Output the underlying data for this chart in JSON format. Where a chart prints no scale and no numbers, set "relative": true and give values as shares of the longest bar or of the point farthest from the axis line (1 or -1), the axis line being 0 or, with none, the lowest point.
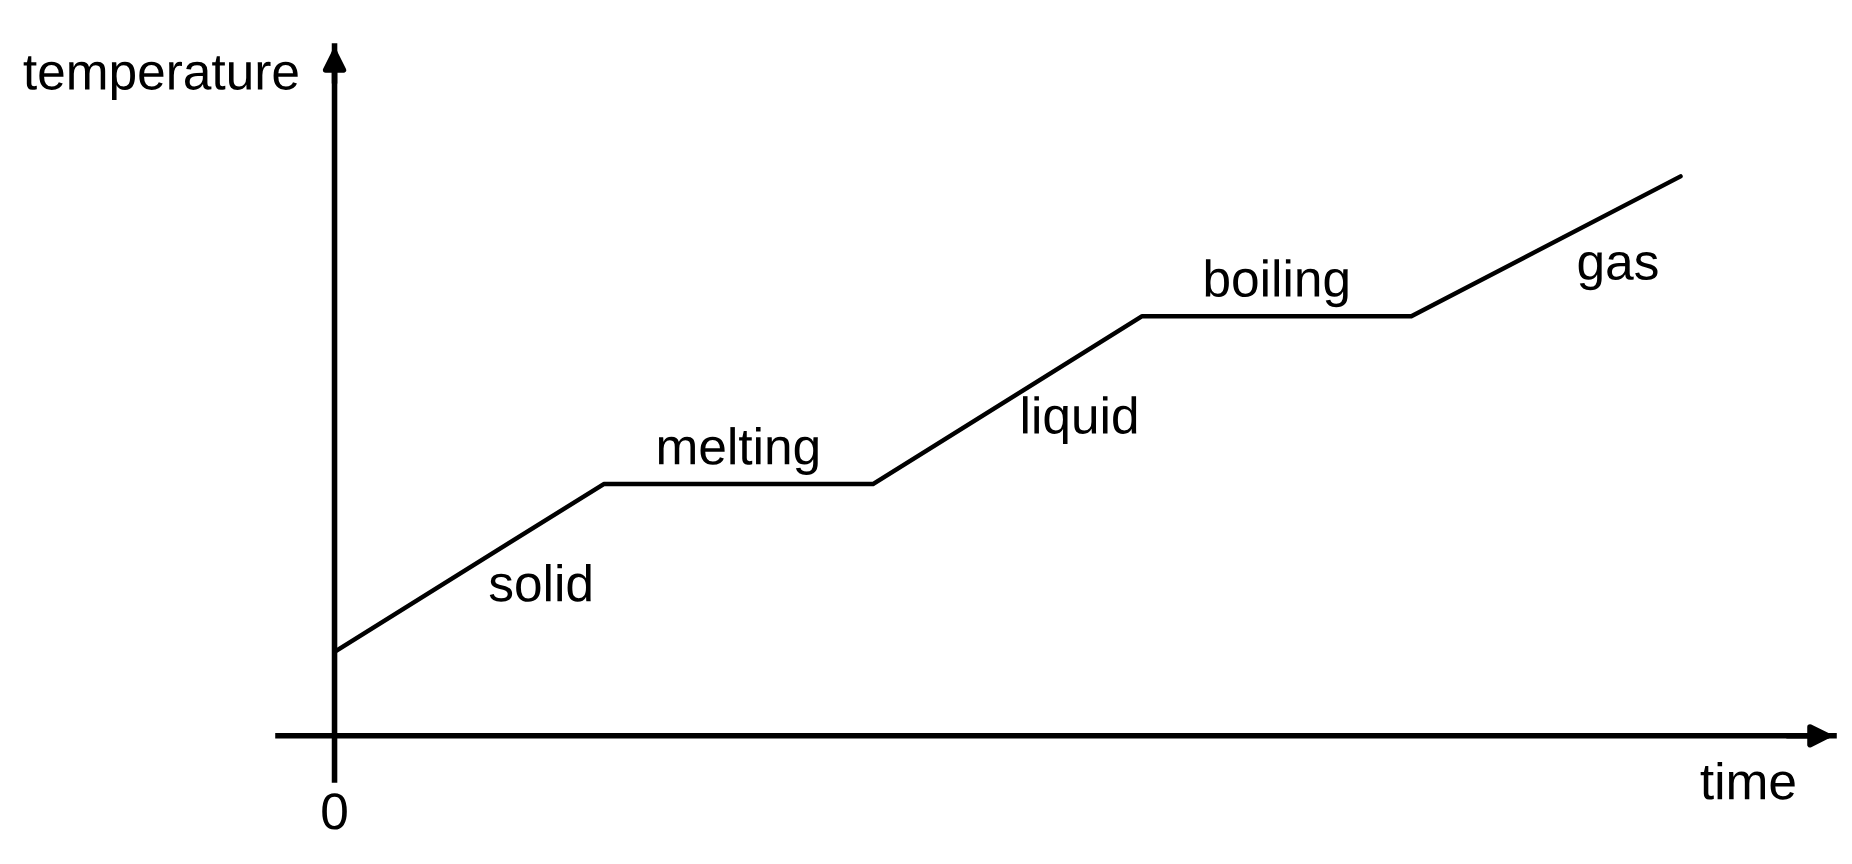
{
  "chart_data": {
    "type": "line",
    "relative": true,
    "xlabel": "time",
    "ylabel": "temperature",
    "categories": [
      null,
      null,
      null,
      null,
      null,
      null
    ],
    "values": [
      0.15,
      0.45,
      0.45,
      0.75,
      0.75,
      1
    ],
    "color": "#000000",
    "line_style": "solid",
    "tick_labels": false,
    "annotations": [
      "0",
      "solid",
      "melting",
      "liquid",
      "boiling",
      "gas"
    ]
  }
}
